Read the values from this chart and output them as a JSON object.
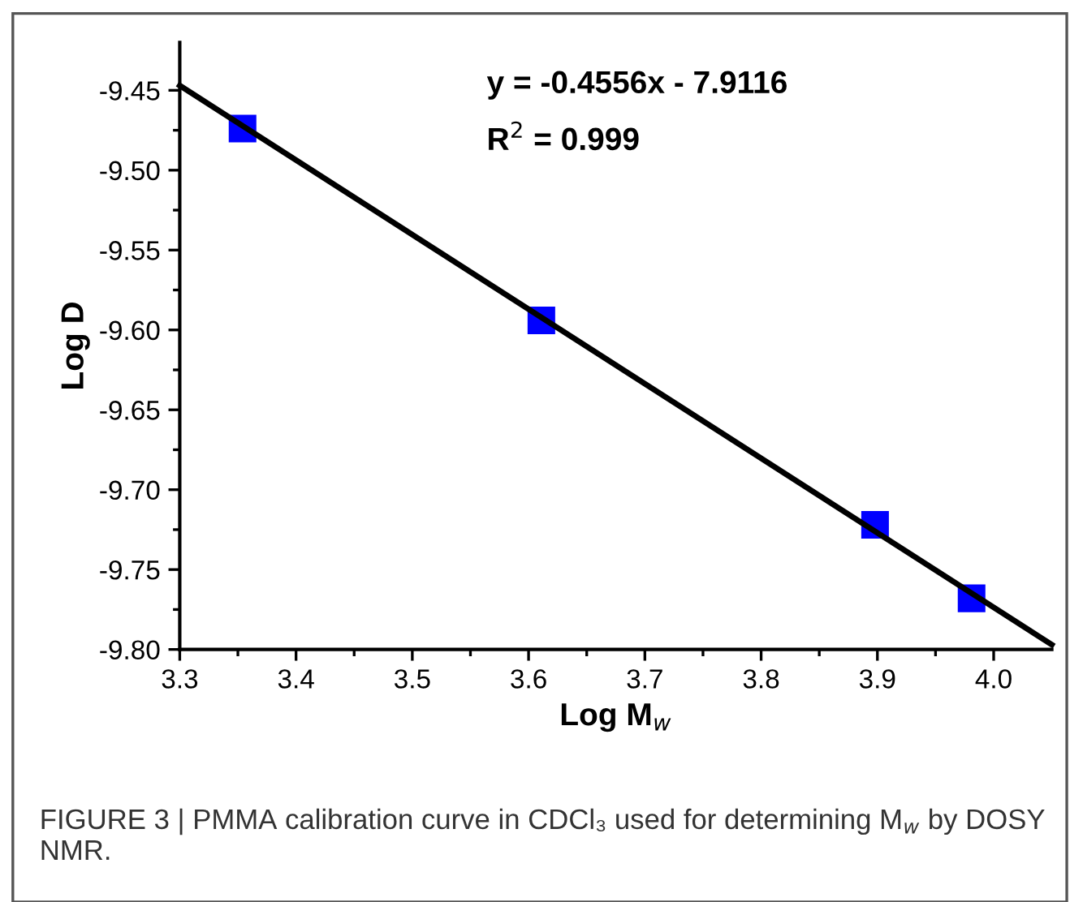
{
  "chart_data": {
    "type": "scatter",
    "xlabel": "Log M$_{w}$",
    "ylabel": "Log D",
    "x": [
      3.354,
      3.611,
      3.898,
      3.981
    ],
    "series": [
      {
        "color": "#0000ff",
        "marker": "square",
        "values": [
          -9.474,
          -9.594,
          -9.722,
          -9.768
        ]
      },
      {
        "type": "line",
        "color": "#000000",
        "marker": "none",
        "line_style": "solid",
        "x": [
          3.3,
          4.05
        ],
        "values": [
          -9.447,
          -9.797
        ]
      }
    ],
    "xlim": [
      3.3,
      4.05
    ],
    "ylim": [
      -9.8,
      -9.42
    ],
    "xticks": [
      3.3,
      3.4,
      3.5,
      3.6,
      3.7,
      3.8,
      3.9,
      {
        "value": 4,
        "label": "4.0"
      }
    ],
    "yticks": [
      {
        "value": -9.8,
        "label": "-9.80"
      },
      -9.75,
      {
        "value": -9.7,
        "label": "-9.70"
      },
      -9.65,
      {
        "value": -9.6,
        "label": "-9.60"
      },
      -9.55,
      {
        "value": -9.5,
        "label": "-9.50"
      },
      -9.45
    ],
    "grid": false,
    "legend": false,
    "annotations": [
      "y = -0.4556x - 7.9116",
      "R$^{2}$ = 0.999",
      "FIGURE 3 | PMMA calibration curve in CDCl₃ used for determining M$_{w}$ by DOSY NMR."
    ]
  }
}
